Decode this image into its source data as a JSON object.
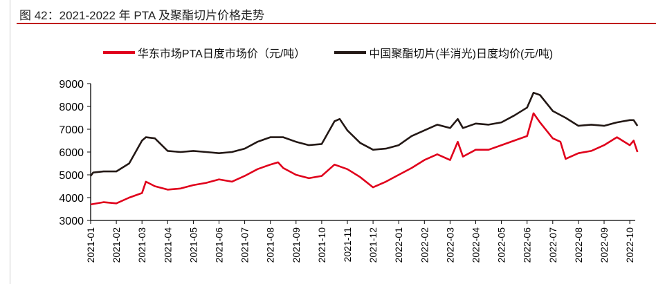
{
  "chart_data": {
    "type": "line",
    "title": "图 42：2021-2022 年 PTA 及聚酯切片价格走势",
    "xlabel": "",
    "ylabel": "",
    "ylim": [
      3000,
      9000
    ],
    "yticks": [
      "3000",
      "4000",
      "5000",
      "6000",
      "7000",
      "8000",
      "9000"
    ],
    "categories": [
      "2021-01",
      "2021-02",
      "2021-03",
      "2021-04",
      "2021-05",
      "2021-06",
      "2021-07",
      "2021-08",
      "2021-09",
      "2021-10",
      "2021-11",
      "2021-12",
      "2022-01",
      "2022-02",
      "2022-03",
      "2022-04",
      "2022-05",
      "2022-06",
      "2022-07",
      "2022-08",
      "2022-09",
      "2022-10"
    ],
    "legend_position": "top",
    "series": [
      {
        "name": "华东市场PTA日度市场价（元/吨）",
        "color": "#e0001b",
        "x": [
          0,
          0.5,
          1,
          1.5,
          2,
          2.15,
          2.5,
          3,
          3.5,
          4,
          4.5,
          5,
          5.5,
          6,
          6.5,
          7,
          7.3,
          7.5,
          8,
          8.5,
          9,
          9.5,
          10,
          10.5,
          11,
          11.5,
          12,
          12.5,
          13,
          13.5,
          14,
          14.3,
          14.5,
          15,
          15.5,
          16,
          16.5,
          17,
          17.25,
          17.5,
          18,
          18.3,
          18.5,
          19,
          19.5,
          20,
          20.5,
          21,
          21.15,
          21.3
        ],
        "values": [
          3700,
          3800,
          3750,
          4000,
          4200,
          4700,
          4500,
          4350,
          4400,
          4550,
          4650,
          4800,
          4700,
          4950,
          5250,
          5450,
          5550,
          5300,
          5000,
          4850,
          4950,
          5450,
          5250,
          4900,
          4450,
          4700,
          5000,
          5300,
          5650,
          5900,
          5650,
          6450,
          5800,
          6100,
          6100,
          6300,
          6500,
          6700,
          7700,
          7300,
          6600,
          6450,
          5700,
          5950,
          6050,
          6300,
          6650,
          6300,
          6500,
          6000
        ]
      },
      {
        "name": "中国聚酯切片(半消光)日度均价(元/吨)",
        "color": "#231815",
        "x": [
          0,
          0.1,
          0.5,
          1,
          1.5,
          2,
          2.15,
          2.5,
          3,
          3.5,
          4,
          4.5,
          5,
          5.5,
          6,
          6.5,
          7,
          7.5,
          8,
          8.5,
          9,
          9.5,
          9.7,
          10,
          10.5,
          11,
          11.5,
          12,
          12.5,
          13,
          13.5,
          14,
          14.3,
          14.5,
          15,
          15.5,
          16,
          16.5,
          17,
          17.25,
          17.5,
          18,
          18.5,
          19,
          19.5,
          20,
          20.5,
          21,
          21.15,
          21.3
        ],
        "values": [
          4950,
          5100,
          5150,
          5150,
          5500,
          6500,
          6650,
          6600,
          6050,
          6000,
          6050,
          6000,
          5950,
          6000,
          6150,
          6450,
          6650,
          6650,
          6450,
          6300,
          6350,
          7350,
          7450,
          6950,
          6400,
          6100,
          6150,
          6300,
          6700,
          6950,
          7200,
          7050,
          7450,
          7050,
          7250,
          7200,
          7300,
          7600,
          7950,
          8600,
          8500,
          7800,
          7500,
          7150,
          7200,
          7150,
          7300,
          7400,
          7400,
          7150
        ]
      }
    ]
  }
}
